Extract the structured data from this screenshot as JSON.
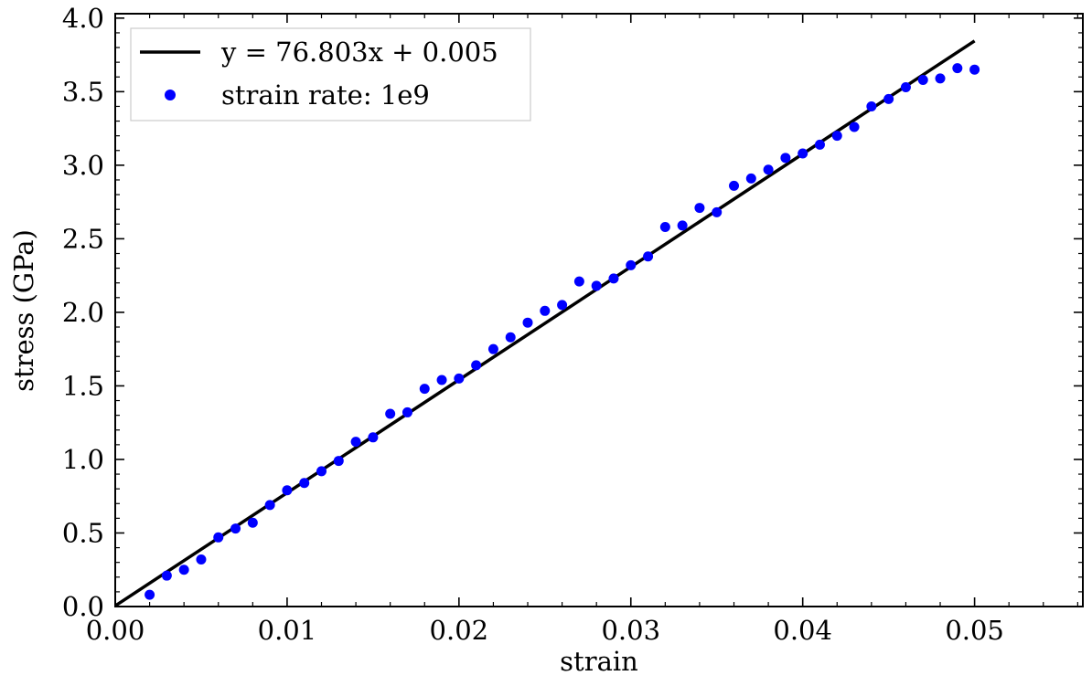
{
  "chart_data": {
    "type": "scatter",
    "title": "",
    "xlabel": "strain",
    "ylabel": "stress (GPa)",
    "xlim": [
      0.0,
      0.0563
    ],
    "ylim": [
      0.0,
      4.03
    ],
    "x_ticks": [
      "0.00",
      "0.01",
      "0.02",
      "0.03",
      "0.04",
      "0.05"
    ],
    "x_tick_values": [
      0.0,
      0.01,
      0.02,
      0.03,
      0.04,
      0.05
    ],
    "y_ticks": [
      "0.0",
      "0.5",
      "1.0",
      "1.5",
      "2.0",
      "2.5",
      "3.0",
      "3.5",
      "4.0"
    ],
    "y_tick_values": [
      0.0,
      0.5,
      1.0,
      1.5,
      2.0,
      2.5,
      3.0,
      3.5,
      4.0
    ],
    "grid": false,
    "legend_position": "top-left",
    "series": [
      {
        "name": "strain rate: 1e9",
        "kind": "scatter",
        "color": "#0000ff",
        "x": [
          0.002,
          0.003,
          0.004,
          0.005,
          0.006,
          0.007,
          0.008,
          0.009,
          0.01,
          0.011,
          0.012,
          0.013,
          0.014,
          0.015,
          0.016,
          0.017,
          0.018,
          0.019,
          0.02,
          0.021,
          0.022,
          0.023,
          0.024,
          0.025,
          0.026,
          0.027,
          0.028,
          0.029,
          0.03,
          0.031,
          0.032,
          0.033,
          0.034,
          0.035,
          0.036,
          0.037,
          0.038,
          0.039,
          0.04,
          0.041,
          0.042,
          0.043,
          0.044,
          0.045,
          0.046,
          0.047,
          0.048,
          0.049,
          0.05
        ],
        "y": [
          0.08,
          0.21,
          0.25,
          0.32,
          0.47,
          0.53,
          0.57,
          0.69,
          0.79,
          0.84,
          0.92,
          0.99,
          1.12,
          1.15,
          1.31,
          1.32,
          1.48,
          1.54,
          1.55,
          1.64,
          1.75,
          1.83,
          1.93,
          2.01,
          2.05,
          2.21,
          2.18,
          2.23,
          2.32,
          2.38,
          2.58,
          2.59,
          2.71,
          2.68,
          2.86,
          2.91,
          2.97,
          3.05,
          3.08,
          3.14,
          3.2,
          3.26,
          3.4,
          3.45,
          3.53,
          3.58,
          3.59,
          3.66,
          3.65
        ]
      },
      {
        "name": "y = 76.803x + 0.005",
        "kind": "line",
        "color": "#000000",
        "x": [
          0.0,
          0.05
        ],
        "y": [
          0.005,
          3.845
        ]
      }
    ],
    "legend": [
      {
        "label": "y = 76.803x + 0.005",
        "marker": "line",
        "color": "#000000"
      },
      {
        "label": "strain rate: 1e9",
        "marker": "dot",
        "color": "#0000ff"
      }
    ]
  }
}
